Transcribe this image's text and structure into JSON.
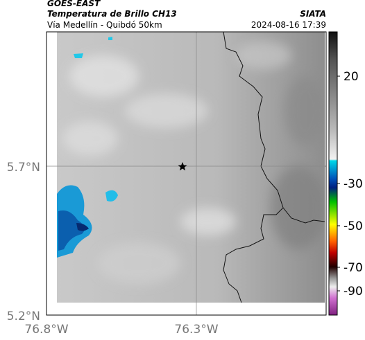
{
  "header": {
    "source": "GOES-EAST",
    "title": "Temperatura de Brillo CH13",
    "org": "SIATA",
    "subtitle": "Vía Medellín - Quibdó 50km",
    "timestamp": "2024-08-16 17:39"
  },
  "axes": {
    "lat_labels": [
      "5.7°N",
      "5.2°N"
    ],
    "lon_labels": [
      "76.8°W",
      "76.3°W"
    ]
  },
  "colorbar": {
    "tick_labels": [
      "20",
      "-30",
      "-50",
      "-70",
      "-90"
    ]
  }
}
